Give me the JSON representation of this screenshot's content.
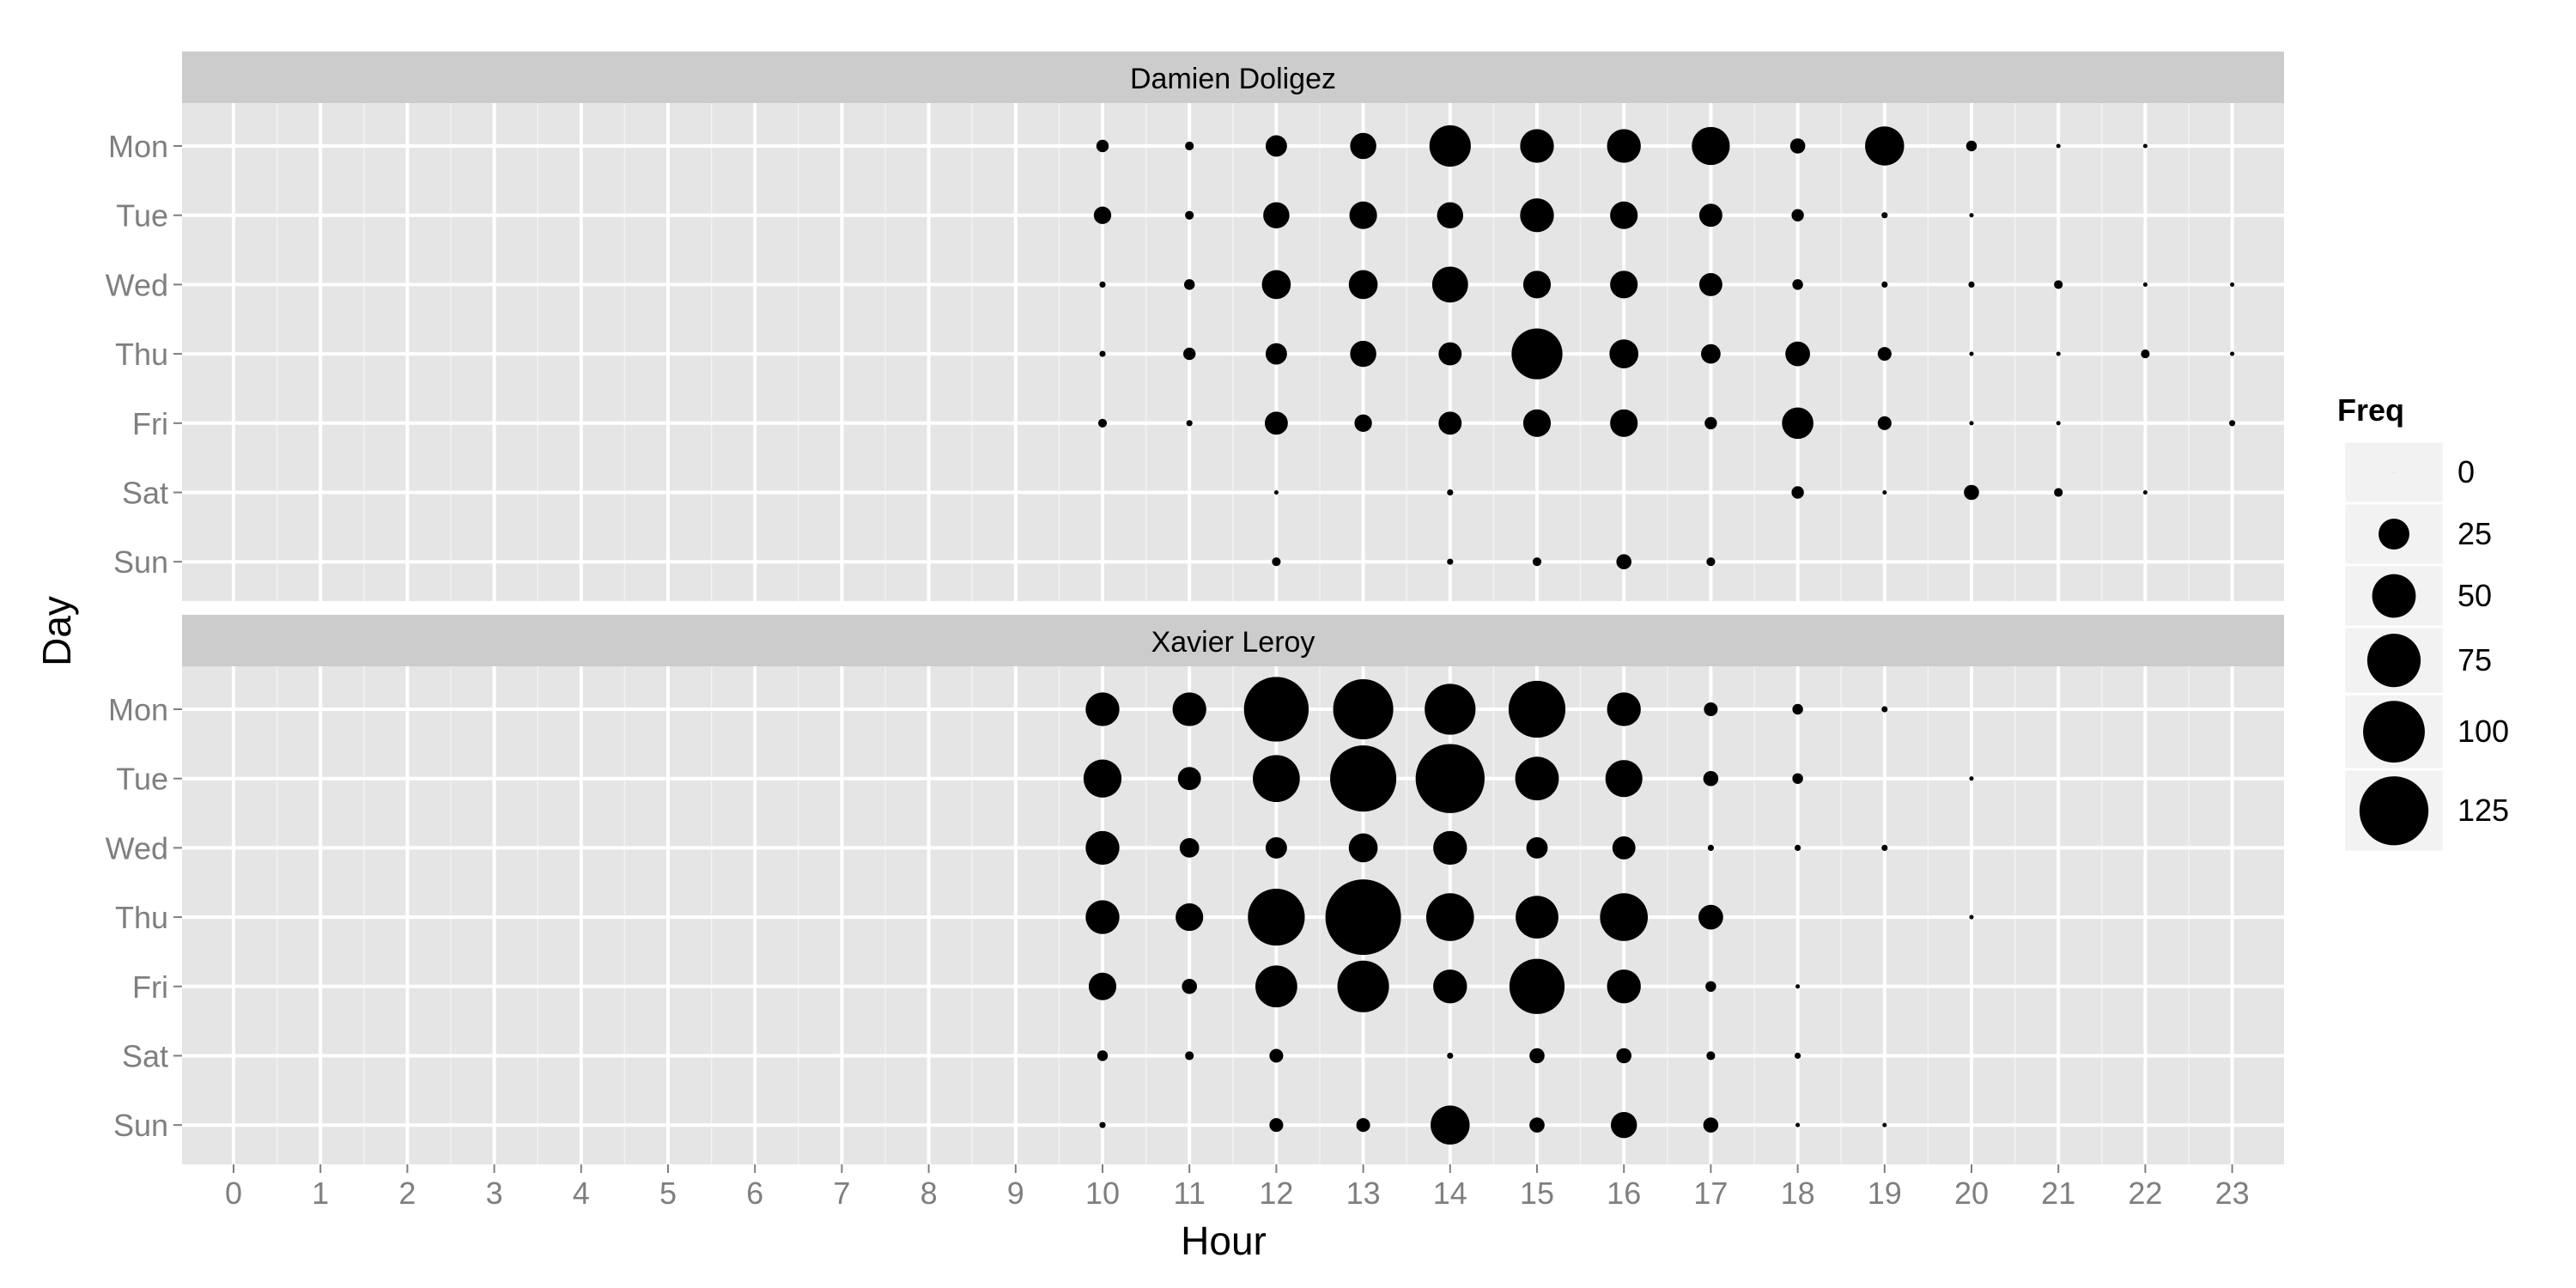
{
  "chart_data": {
    "type": "scatter",
    "xlabel": "Hour",
    "ylabel": "Day",
    "x_ticks": [
      "0",
      "1",
      "2",
      "3",
      "4",
      "5",
      "6",
      "7",
      "8",
      "9",
      "10",
      "11",
      "12",
      "13",
      "14",
      "15",
      "16",
      "17",
      "18",
      "19",
      "20",
      "21",
      "22",
      "23"
    ],
    "y_categories": [
      "Mon",
      "Tue",
      "Wed",
      "Thu",
      "Fri",
      "Sat",
      "Sun"
    ],
    "size_legend": {
      "title": "Freq",
      "breaks": [
        0,
        25,
        50,
        75,
        100,
        125
      ],
      "labels": [
        "0",
        "25",
        "50",
        "75",
        "100",
        "125"
      ]
    },
    "grid": true,
    "legend_position": "right",
    "panels": [
      {
        "title": "Damien Doligez",
        "points": [
          {
            "day": "Mon",
            "hour": 10,
            "freq": 4
          },
          {
            "day": "Mon",
            "hour": 11,
            "freq": 2
          },
          {
            "day": "Mon",
            "hour": 12,
            "freq": 12
          },
          {
            "day": "Mon",
            "hour": 13,
            "freq": 18
          },
          {
            "day": "Mon",
            "hour": 14,
            "freq": 45
          },
          {
            "day": "Mon",
            "hour": 15,
            "freq": 30
          },
          {
            "day": "Mon",
            "hour": 16,
            "freq": 30
          },
          {
            "day": "Mon",
            "hour": 17,
            "freq": 38
          },
          {
            "day": "Mon",
            "hour": 18,
            "freq": 6
          },
          {
            "day": "Mon",
            "hour": 19,
            "freq": 40
          },
          {
            "day": "Mon",
            "hour": 20,
            "freq": 3
          },
          {
            "day": "Mon",
            "hour": 21,
            "freq": 0.5
          },
          {
            "day": "Mon",
            "hour": 22,
            "freq": 0.5
          },
          {
            "day": "Tue",
            "hour": 10,
            "freq": 8
          },
          {
            "day": "Tue",
            "hour": 11,
            "freq": 2
          },
          {
            "day": "Tue",
            "hour": 12,
            "freq": 18
          },
          {
            "day": "Tue",
            "hour": 13,
            "freq": 20
          },
          {
            "day": "Tue",
            "hour": 14,
            "freq": 18
          },
          {
            "day": "Tue",
            "hour": 15,
            "freq": 30
          },
          {
            "day": "Tue",
            "hour": 16,
            "freq": 20
          },
          {
            "day": "Tue",
            "hour": 17,
            "freq": 14
          },
          {
            "day": "Tue",
            "hour": 18,
            "freq": 4
          },
          {
            "day": "Tue",
            "hour": 19,
            "freq": 1
          },
          {
            "day": "Tue",
            "hour": 20,
            "freq": 0.5
          },
          {
            "day": "Wed",
            "hour": 10,
            "freq": 1
          },
          {
            "day": "Wed",
            "hour": 11,
            "freq": 3
          },
          {
            "day": "Wed",
            "hour": 12,
            "freq": 22
          },
          {
            "day": "Wed",
            "hour": 13,
            "freq": 22
          },
          {
            "day": "Wed",
            "hour": 14,
            "freq": 34
          },
          {
            "day": "Wed",
            "hour": 15,
            "freq": 20
          },
          {
            "day": "Wed",
            "hour": 16,
            "freq": 20
          },
          {
            "day": "Wed",
            "hour": 17,
            "freq": 14
          },
          {
            "day": "Wed",
            "hour": 18,
            "freq": 3
          },
          {
            "day": "Wed",
            "hour": 19,
            "freq": 1
          },
          {
            "day": "Wed",
            "hour": 20,
            "freq": 1
          },
          {
            "day": "Wed",
            "hour": 21,
            "freq": 2
          },
          {
            "day": "Wed",
            "hour": 22,
            "freq": 0.5
          },
          {
            "day": "Wed",
            "hour": 23,
            "freq": 0.5
          },
          {
            "day": "Thu",
            "hour": 10,
            "freq": 1
          },
          {
            "day": "Thu",
            "hour": 11,
            "freq": 4
          },
          {
            "day": "Thu",
            "hour": 12,
            "freq": 12
          },
          {
            "day": "Thu",
            "hour": 13,
            "freq": 18
          },
          {
            "day": "Thu",
            "hour": 14,
            "freq": 14
          },
          {
            "day": "Thu",
            "hour": 15,
            "freq": 68
          },
          {
            "day": "Thu",
            "hour": 16,
            "freq": 22
          },
          {
            "day": "Thu",
            "hour": 17,
            "freq": 10
          },
          {
            "day": "Thu",
            "hour": 18,
            "freq": 16
          },
          {
            "day": "Thu",
            "hour": 19,
            "freq": 5
          },
          {
            "day": "Thu",
            "hour": 20,
            "freq": 0.5
          },
          {
            "day": "Thu",
            "hour": 21,
            "freq": 0.5
          },
          {
            "day": "Thu",
            "hour": 22,
            "freq": 2
          },
          {
            "day": "Thu",
            "hour": 23,
            "freq": 0.5
          },
          {
            "day": "Fri",
            "hour": 10,
            "freq": 2
          },
          {
            "day": "Fri",
            "hour": 11,
            "freq": 1
          },
          {
            "day": "Fri",
            "hour": 12,
            "freq": 14
          },
          {
            "day": "Fri",
            "hour": 13,
            "freq": 8
          },
          {
            "day": "Fri",
            "hour": 14,
            "freq": 14
          },
          {
            "day": "Fri",
            "hour": 15,
            "freq": 20
          },
          {
            "day": "Fri",
            "hour": 16,
            "freq": 20
          },
          {
            "day": "Fri",
            "hour": 17,
            "freq": 4
          },
          {
            "day": "Fri",
            "hour": 18,
            "freq": 26
          },
          {
            "day": "Fri",
            "hour": 19,
            "freq": 5
          },
          {
            "day": "Fri",
            "hour": 20,
            "freq": 0.5
          },
          {
            "day": "Fri",
            "hour": 21,
            "freq": 0.5
          },
          {
            "day": "Fri",
            "hour": 23,
            "freq": 1
          },
          {
            "day": "Sat",
            "hour": 12,
            "freq": 0.5
          },
          {
            "day": "Sat",
            "hour": 14,
            "freq": 1
          },
          {
            "day": "Sat",
            "hour": 18,
            "freq": 4
          },
          {
            "day": "Sat",
            "hour": 19,
            "freq": 0.5
          },
          {
            "day": "Sat",
            "hour": 20,
            "freq": 6
          },
          {
            "day": "Sat",
            "hour": 21,
            "freq": 2
          },
          {
            "day": "Sat",
            "hour": 22,
            "freq": 0.5
          },
          {
            "day": "Sun",
            "hour": 12,
            "freq": 2
          },
          {
            "day": "Sun",
            "hour": 14,
            "freq": 1
          },
          {
            "day": "Sun",
            "hour": 15,
            "freq": 2
          },
          {
            "day": "Sun",
            "hour": 16,
            "freq": 6
          },
          {
            "day": "Sun",
            "hour": 17,
            "freq": 2
          }
        ]
      },
      {
        "title": "Xavier Leroy",
        "points": [
          {
            "day": "Mon",
            "hour": 10,
            "freq": 30
          },
          {
            "day": "Mon",
            "hour": 11,
            "freq": 30
          },
          {
            "day": "Mon",
            "hour": 12,
            "freq": 110
          },
          {
            "day": "Mon",
            "hour": 13,
            "freq": 95
          },
          {
            "day": "Mon",
            "hour": 14,
            "freq": 68
          },
          {
            "day": "Mon",
            "hour": 15,
            "freq": 85
          },
          {
            "day": "Mon",
            "hour": 16,
            "freq": 30
          },
          {
            "day": "Mon",
            "hour": 17,
            "freq": 5
          },
          {
            "day": "Mon",
            "hour": 18,
            "freq": 3
          },
          {
            "day": "Mon",
            "hour": 19,
            "freq": 1
          },
          {
            "day": "Tue",
            "hour": 10,
            "freq": 38
          },
          {
            "day": "Tue",
            "hour": 11,
            "freq": 14
          },
          {
            "day": "Tue",
            "hour": 12,
            "freq": 58
          },
          {
            "day": "Tue",
            "hour": 13,
            "freq": 115
          },
          {
            "day": "Tue",
            "hour": 14,
            "freq": 125
          },
          {
            "day": "Tue",
            "hour": 15,
            "freq": 50
          },
          {
            "day": "Tue",
            "hour": 16,
            "freq": 36
          },
          {
            "day": "Tue",
            "hour": 17,
            "freq": 6
          },
          {
            "day": "Tue",
            "hour": 18,
            "freq": 3
          },
          {
            "day": "Tue",
            "hour": 20,
            "freq": 0.5
          },
          {
            "day": "Wed",
            "hour": 10,
            "freq": 30
          },
          {
            "day": "Wed",
            "hour": 11,
            "freq": 10
          },
          {
            "day": "Wed",
            "hour": 12,
            "freq": 12
          },
          {
            "day": "Wed",
            "hour": 13,
            "freq": 22
          },
          {
            "day": "Wed",
            "hour": 14,
            "freq": 30
          },
          {
            "day": "Wed",
            "hour": 15,
            "freq": 12
          },
          {
            "day": "Wed",
            "hour": 16,
            "freq": 14
          },
          {
            "day": "Wed",
            "hour": 17,
            "freq": 1
          },
          {
            "day": "Wed",
            "hour": 18,
            "freq": 1
          },
          {
            "day": "Wed",
            "hour": 19,
            "freq": 1
          },
          {
            "day": "Thu",
            "hour": 10,
            "freq": 30
          },
          {
            "day": "Thu",
            "hour": 11,
            "freq": 20
          },
          {
            "day": "Thu",
            "hour": 12,
            "freq": 85
          },
          {
            "day": "Thu",
            "hour": 13,
            "freq": 150
          },
          {
            "day": "Thu",
            "hour": 14,
            "freq": 60
          },
          {
            "day": "Thu",
            "hour": 15,
            "freq": 48
          },
          {
            "day": "Thu",
            "hour": 16,
            "freq": 60
          },
          {
            "day": "Thu",
            "hour": 17,
            "freq": 16
          },
          {
            "day": "Thu",
            "hour": 20,
            "freq": 0.5
          },
          {
            "day": "Fri",
            "hour": 10,
            "freq": 20
          },
          {
            "day": "Fri",
            "hour": 11,
            "freq": 6
          },
          {
            "day": "Fri",
            "hour": 12,
            "freq": 46
          },
          {
            "day": "Fri",
            "hour": 13,
            "freq": 70
          },
          {
            "day": "Fri",
            "hour": 14,
            "freq": 30
          },
          {
            "day": "Fri",
            "hour": 15,
            "freq": 80
          },
          {
            "day": "Fri",
            "hour": 16,
            "freq": 30
          },
          {
            "day": "Fri",
            "hour": 17,
            "freq": 3
          },
          {
            "day": "Fri",
            "hour": 18,
            "freq": 0.5
          },
          {
            "day": "Sat",
            "hour": 10,
            "freq": 3
          },
          {
            "day": "Sat",
            "hour": 11,
            "freq": 2
          },
          {
            "day": "Sat",
            "hour": 12,
            "freq": 5
          },
          {
            "day": "Sat",
            "hour": 14,
            "freq": 1
          },
          {
            "day": "Sat",
            "hour": 15,
            "freq": 6
          },
          {
            "day": "Sat",
            "hour": 16,
            "freq": 6
          },
          {
            "day": "Sat",
            "hour": 17,
            "freq": 2
          },
          {
            "day": "Sat",
            "hour": 18,
            "freq": 1
          },
          {
            "day": "Sun",
            "hour": 10,
            "freq": 1
          },
          {
            "day": "Sun",
            "hour": 12,
            "freq": 5
          },
          {
            "day": "Sun",
            "hour": 13,
            "freq": 5
          },
          {
            "day": "Sun",
            "hour": 14,
            "freq": 40
          },
          {
            "day": "Sun",
            "hour": 15,
            "freq": 6
          },
          {
            "day": "Sun",
            "hour": 16,
            "freq": 18
          },
          {
            "day": "Sun",
            "hour": 17,
            "freq": 6
          },
          {
            "day": "Sun",
            "hour": 18,
            "freq": 0.5
          },
          {
            "day": "Sun",
            "hour": 19,
            "freq": 0.5
          }
        ]
      }
    ],
    "colors": {
      "panel_background": "#e5e5e5",
      "strip_background": "#cccccc",
      "grid": "#ffffff",
      "point": "#000000",
      "tick_label": "#7f7f7f"
    }
  }
}
